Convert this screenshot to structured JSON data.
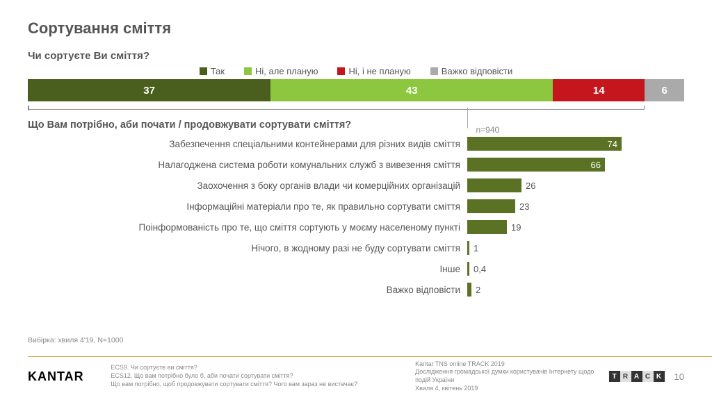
{
  "title": "Сортування сміття",
  "q1": {
    "text": "Чи сортуєте Ви сміття?",
    "legend": [
      {
        "label": "Так",
        "color": "#4a5f1e"
      },
      {
        "label": "Ні, але планую",
        "color": "#8dc63f"
      },
      {
        "label": "Ні, і не планую",
        "color": "#c4161c"
      },
      {
        "label": "Важко відповісти",
        "color": "#aaaaaa"
      }
    ],
    "segments": [
      {
        "value": 37,
        "color": "#4a5f1e"
      },
      {
        "value": 43,
        "color": "#8dc63f"
      },
      {
        "value": 14,
        "color": "#c4161c"
      },
      {
        "value": 6,
        "color": "#aaaaaa"
      }
    ],
    "bracket_pct": 94
  },
  "q2": {
    "text": "Що Вам потрібно, аби почати / продовжувати сортувати сміття?",
    "n_label": "n=940",
    "max": 100,
    "bar_color": "#5b7224",
    "items": [
      {
        "label": "Забезпечення спеціальними контейнерами для різних видів сміття",
        "value": 74,
        "display": "74",
        "inside": true
      },
      {
        "label": "Налагоджена система роботи комунальних служб з вивезення сміття",
        "value": 66,
        "display": "66",
        "inside": true
      },
      {
        "label": "Заохочення з боку органів влади чи комерційних організацій",
        "value": 26,
        "display": "26",
        "inside": false
      },
      {
        "label": "Інформаційні матеріали про те, як правильно сортувати сміття",
        "value": 23,
        "display": "23",
        "inside": false
      },
      {
        "label": "Поінформованість про те, що сміття сортують у моєму населеному пункті",
        "value": 19,
        "display": "19",
        "inside": false
      },
      {
        "label": "Нічого, в жодному разі не буду сортувати сміття",
        "value": 1,
        "display": "1",
        "inside": false
      },
      {
        "label": "Інше",
        "value": 0.4,
        "display": "0,4",
        "inside": false
      },
      {
        "label": "Важко відповісти",
        "value": 2,
        "display": "2",
        "inside": false
      }
    ]
  },
  "sample_note": "Вибірка: хвиля 4'19, N=1000",
  "footer": {
    "logo": "KANTAR",
    "qs": [
      "ECS9. Чи сортуєте ви сміття?",
      "ECS12. Що вам потрібно було б, аби почати сортувати сміття?",
      "Що вам потрібно, щоб продовжувати сортувати сміття? Чого вам зараз не вистачає?"
    ],
    "meta": [
      "Kantar TNS online TRACK 2019",
      "Дослідження громадської думки користувачів Інтернету щодо подій України",
      "Хвиля 4, квітень 2019"
    ],
    "track_colors": [
      "#333333",
      "#e0e0e0",
      "#333333",
      "#e0e0e0",
      "#333333"
    ],
    "track_letters": [
      "T",
      "R",
      "A",
      "C",
      "K"
    ],
    "page": "10"
  }
}
